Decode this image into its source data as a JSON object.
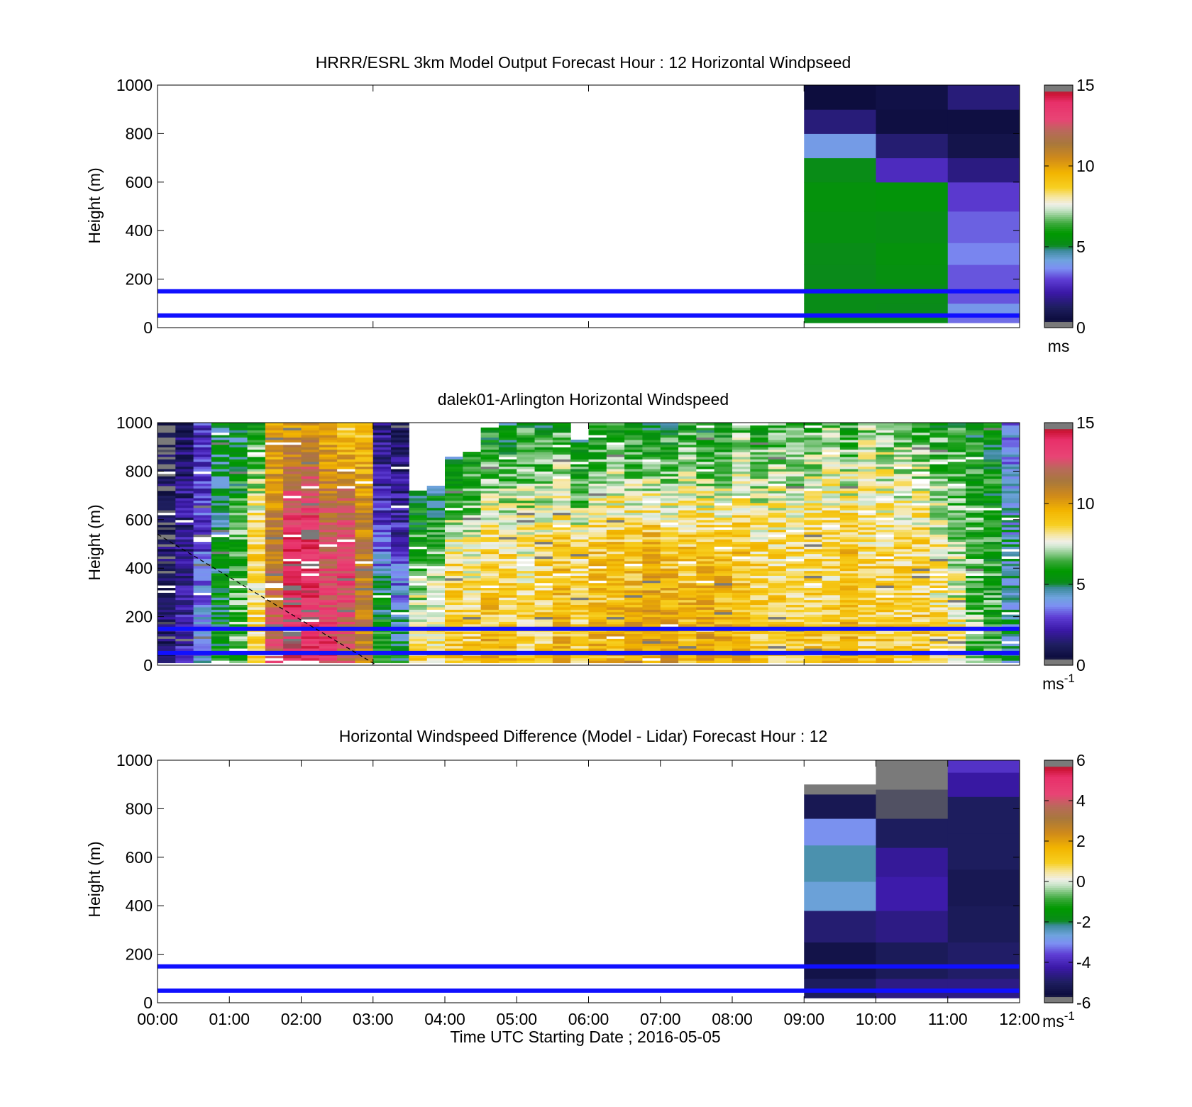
{
  "figure": {
    "xlabel": "Time UTC  Starting Date ; 2016-05-05",
    "x_tick_labels": [
      "00:00",
      "01:00",
      "02:00",
      "03:00",
      "04:00",
      "05:00",
      "06:00",
      "07:00",
      "08:00",
      "09:00",
      "10:00",
      "11:00",
      "12:00"
    ]
  },
  "chart_data": [
    {
      "type": "heatmap",
      "title": "HRRR/ESRL 3km Model Output   Forecast Hour : 12 Horizontal Windpseed",
      "ylabel": "Height (m)",
      "xlim": [
        0,
        12
      ],
      "ylim": [
        0,
        1000
      ],
      "y_ticks": [
        0,
        200,
        400,
        600,
        800,
        1000
      ],
      "colorbar": {
        "ticks": [
          0,
          5,
          10,
          15
        ],
        "range": [
          0,
          15
        ],
        "unit": "ms",
        "unit_exp": ""
      },
      "reference_lines_m": [
        50,
        150
      ],
      "columns": [
        {
          "t0": 9,
          "t1": 10,
          "levels": [
            {
              "z0": 20,
              "z1": 50,
              "v": 5.2
            },
            {
              "z0": 50,
              "z1": 100,
              "v": 5.2
            },
            {
              "z0": 100,
              "z1": 180,
              "v": 5.2
            },
            {
              "z0": 180,
              "z1": 260,
              "v": 5.1
            },
            {
              "z0": 260,
              "z1": 350,
              "v": 5.2
            },
            {
              "z0": 350,
              "z1": 480,
              "v": 5.4
            },
            {
              "z0": 480,
              "z1": 600,
              "v": 5.5
            },
            {
              "z0": 600,
              "z1": 700,
              "v": 5.2
            },
            {
              "z0": 700,
              "z1": 800,
              "v": 4.0
            },
            {
              "z0": 800,
              "z1": 900,
              "v": 1.6
            },
            {
              "z0": 900,
              "z1": 1000,
              "v": 0.5
            }
          ]
        },
        {
          "t0": 10,
          "t1": 11,
          "levels": [
            {
              "z0": 20,
              "z1": 50,
              "v": 5.2
            },
            {
              "z0": 50,
              "z1": 100,
              "v": 5.1
            },
            {
              "z0": 100,
              "z1": 180,
              "v": 5.2
            },
            {
              "z0": 180,
              "z1": 260,
              "v": 5.4
            },
            {
              "z0": 260,
              "z1": 350,
              "v": 5.5
            },
            {
              "z0": 350,
              "z1": 480,
              "v": 5.3
            },
            {
              "z0": 480,
              "z1": 600,
              "v": 5.6
            },
            {
              "z0": 600,
              "z1": 700,
              "v": 2.6
            },
            {
              "z0": 700,
              "z1": 800,
              "v": 1.5
            },
            {
              "z0": 800,
              "z1": 900,
              "v": 0.6
            },
            {
              "z0": 900,
              "z1": 1000,
              "v": 0.7
            }
          ]
        },
        {
          "t0": 11,
          "t1": 12,
          "levels": [
            {
              "z0": 20,
              "z1": 50,
              "v": 3.4
            },
            {
              "z0": 50,
              "z1": 100,
              "v": 3.9
            },
            {
              "z0": 100,
              "z1": 180,
              "v": 3.2
            },
            {
              "z0": 180,
              "z1": 260,
              "v": 3.2
            },
            {
              "z0": 260,
              "z1": 350,
              "v": 3.6
            },
            {
              "z0": 350,
              "z1": 480,
              "v": 3.3
            },
            {
              "z0": 480,
              "z1": 600,
              "v": 2.9
            },
            {
              "z0": 600,
              "z1": 700,
              "v": 1.7
            },
            {
              "z0": 700,
              "z1": 800,
              "v": 0.8
            },
            {
              "z0": 800,
              "z1": 900,
              "v": 0.6
            },
            {
              "z0": 900,
              "z1": 1000,
              "v": 1.6
            }
          ]
        }
      ]
    },
    {
      "type": "heatmap",
      "title": "dalek01-Arlington  Horizontal Windspeed",
      "ylabel": "Height (m)",
      "xlim": [
        0,
        12
      ],
      "ylim": [
        0,
        1000
      ],
      "y_ticks": [
        0,
        200,
        400,
        600,
        800,
        1000
      ],
      "colorbar": {
        "ticks": [
          0,
          5,
          10,
          15
        ],
        "range": [
          0,
          15
        ],
        "unit": "ms",
        "unit_exp": "-1"
      },
      "reference_lines_m": [
        50,
        150
      ],
      "dashed_line": {
        "from": [
          0,
          540
        ],
        "to": [
          3.05,
          0
        ]
      },
      "profiles": [
        {
          "t": 0.0,
          "top": 1000,
          "c": [
            1.2,
            1.0,
            0.6
          ]
        },
        {
          "t": 0.25,
          "top": 1000,
          "c": [
            2.5,
            1.8,
            1.5
          ]
        },
        {
          "t": 0.5,
          "top": 1000,
          "c": [
            4.0,
            3.0,
            2.5
          ]
        },
        {
          "t": 0.75,
          "top": 1000,
          "c": [
            5.5,
            5.0,
            5.2
          ]
        },
        {
          "t": 1.0,
          "top": 1000,
          "c": [
            6.5,
            6.5,
            5.0
          ]
        },
        {
          "t": 1.25,
          "top": 1000,
          "c": [
            8.5,
            8.5,
            6.0
          ]
        },
        {
          "t": 1.5,
          "top": 1000,
          "c": [
            12.5,
            11.0,
            9.5
          ]
        },
        {
          "t": 1.75,
          "top": 1000,
          "c": [
            14.0,
            14.0,
            10.0
          ]
        },
        {
          "t": 2.0,
          "top": 1000,
          "c": [
            13.5,
            14.0,
            10.5
          ]
        },
        {
          "t": 2.25,
          "top": 1000,
          "c": [
            13.5,
            12.5,
            9.5
          ]
        },
        {
          "t": 2.5,
          "top": 1000,
          "c": [
            12.0,
            13.5,
            8.5
          ]
        },
        {
          "t": 2.75,
          "top": 1000,
          "c": [
            11.0,
            11.0,
            9.0
          ]
        },
        {
          "t": 3.0,
          "top": 1000,
          "c": [
            7.0,
            3.0,
            1.5
          ]
        },
        {
          "t": 3.25,
          "top": 1000,
          "c": [
            5.5,
            2.5,
            1.0
          ]
        },
        {
          "t": 3.5,
          "top": 720,
          "c": [
            8.5,
            7.0,
            5.0
          ]
        },
        {
          "t": 3.75,
          "top": 740,
          "c": [
            8.5,
            7.0,
            5.0
          ]
        },
        {
          "t": 4.0,
          "top": 860,
          "c": [
            9.0,
            8.5,
            5.0
          ]
        },
        {
          "t": 4.25,
          "top": 880,
          "c": [
            9.0,
            8.0,
            5.5
          ]
        },
        {
          "t": 4.5,
          "top": 980,
          "c": [
            9.5,
            8.5,
            5.5
          ]
        },
        {
          "t": 4.75,
          "top": 1000,
          "c": [
            9.0,
            8.5,
            5.0
          ]
        },
        {
          "t": 5.0,
          "top": 1000,
          "c": [
            9.0,
            8.0,
            6.0
          ]
        },
        {
          "t": 5.25,
          "top": 1000,
          "c": [
            9.0,
            8.5,
            5.5
          ]
        },
        {
          "t": 5.5,
          "top": 1000,
          "c": [
            9.5,
            9.0,
            6.0
          ]
        },
        {
          "t": 5.75,
          "top": 930,
          "c": [
            9.0,
            8.5,
            5.0
          ]
        },
        {
          "t": 6.0,
          "top": 1000,
          "c": [
            9.5,
            9.0,
            5.5
          ]
        },
        {
          "t": 6.25,
          "top": 1000,
          "c": [
            9.5,
            9.0,
            6.0
          ]
        },
        {
          "t": 6.5,
          "top": 1000,
          "c": [
            10.0,
            9.0,
            5.5
          ]
        },
        {
          "t": 6.75,
          "top": 1000,
          "c": [
            10.0,
            9.5,
            5.0
          ]
        },
        {
          "t": 7.0,
          "top": 1000,
          "c": [
            10.0,
            9.0,
            5.5
          ]
        },
        {
          "t": 7.25,
          "top": 1000,
          "c": [
            9.5,
            9.0,
            6.0
          ]
        },
        {
          "t": 7.5,
          "top": 1000,
          "c": [
            10.0,
            9.0,
            5.5
          ]
        },
        {
          "t": 7.75,
          "top": 1000,
          "c": [
            10.0,
            9.0,
            5.5
          ]
        },
        {
          "t": 8.0,
          "top": 1000,
          "c": [
            9.5,
            9.0,
            6.5
          ]
        },
        {
          "t": 8.25,
          "top": 1000,
          "c": [
            9.0,
            8.5,
            6.0
          ]
        },
        {
          "t": 8.5,
          "top": 1000,
          "c": [
            9.0,
            8.5,
            6.5
          ]
        },
        {
          "t": 8.75,
          "top": 1000,
          "c": [
            9.0,
            8.5,
            6.0
          ]
        },
        {
          "t": 9.0,
          "top": 1000,
          "c": [
            9.0,
            8.5,
            6.5
          ]
        },
        {
          "t": 9.25,
          "top": 1000,
          "c": [
            9.0,
            8.5,
            7.0
          ]
        },
        {
          "t": 9.5,
          "top": 1000,
          "c": [
            9.5,
            9.0,
            6.0
          ]
        },
        {
          "t": 9.75,
          "top": 1000,
          "c": [
            9.0,
            8.5,
            7.0
          ]
        },
        {
          "t": 10.0,
          "top": 1000,
          "c": [
            9.0,
            8.5,
            7.0
          ]
        },
        {
          "t": 10.25,
          "top": 1000,
          "c": [
            9.0,
            8.5,
            6.5
          ]
        },
        {
          "t": 10.5,
          "top": 1000,
          "c": [
            9.0,
            8.5,
            6.5
          ]
        },
        {
          "t": 10.75,
          "top": 1000,
          "c": [
            8.5,
            8.0,
            6.0
          ]
        },
        {
          "t": 11.0,
          "top": 1000,
          "c": [
            8.5,
            7.0,
            6.0
          ]
        },
        {
          "t": 11.25,
          "top": 1000,
          "c": [
            7.0,
            6.5,
            5.5
          ]
        },
        {
          "t": 11.5,
          "top": 1000,
          "c": [
            6.5,
            6.0,
            5.5
          ]
        },
        {
          "t": 11.75,
          "top": 1000,
          "c": [
            5.0,
            4.5,
            3.5
          ]
        }
      ]
    },
    {
      "type": "heatmap",
      "title": "Horizontal Windspeed Difference (Model - Lidar) Forecast Hour : 12",
      "ylabel": "Height (m)",
      "xlim": [
        0,
        12
      ],
      "ylim": [
        0,
        1000
      ],
      "y_ticks": [
        0,
        200,
        400,
        600,
        800,
        1000
      ],
      "colorbar": {
        "ticks": [
          -6,
          -4,
          -2,
          0,
          2,
          4,
          6
        ],
        "range": [
          -6,
          6
        ],
        "unit": "ms",
        "unit_exp": "-1"
      },
      "reference_lines_m": [
        50,
        150
      ],
      "columns": [
        {
          "t0": 9,
          "t1": 10,
          "top": 900,
          "levels": [
            {
              "z0": 20,
              "z1": 100,
              "v": -5.0
            },
            {
              "z0": 100,
              "z1": 250,
              "v": -5.4
            },
            {
              "z0": 250,
              "z1": 380,
              "v": -4.8
            },
            {
              "z0": 380,
              "z1": 500,
              "v": -2.6
            },
            {
              "z0": 500,
              "z1": 650,
              "v": -2.3
            },
            {
              "z0": 650,
              "z1": 760,
              "v": -3.0
            },
            {
              "z0": 760,
              "z1": 860,
              "v": -5.2
            },
            {
              "z0": 860,
              "z1": 900,
              "v": -7.0
            }
          ]
        },
        {
          "t0": 10,
          "t1": 11,
          "top": 1000,
          "levels": [
            {
              "z0": 20,
              "z1": 100,
              "v": -4.6
            },
            {
              "z0": 100,
              "z1": 250,
              "v": -5.1
            },
            {
              "z0": 250,
              "z1": 380,
              "v": -4.6
            },
            {
              "z0": 380,
              "z1": 520,
              "v": -4.2
            },
            {
              "z0": 520,
              "z1": 640,
              "v": -4.4
            },
            {
              "z0": 640,
              "z1": 760,
              "v": -5.0
            },
            {
              "z0": 760,
              "z1": 880,
              "v": -5.7
            },
            {
              "z0": 880,
              "z1": 990,
              "v": -7.0
            },
            {
              "z0": 990,
              "z1": 1000,
              "v": -5.8
            }
          ]
        },
        {
          "t0": 11,
          "t1": 12,
          "top": 1000,
          "levels": [
            {
              "z0": 20,
              "z1": 100,
              "v": -4.6
            },
            {
              "z0": 100,
              "z1": 250,
              "v": -4.9
            },
            {
              "z0": 250,
              "z1": 400,
              "v": -5.1
            },
            {
              "z0": 400,
              "z1": 550,
              "v": -5.2
            },
            {
              "z0": 550,
              "z1": 700,
              "v": -5.0
            },
            {
              "z0": 700,
              "z1": 850,
              "v": -5.0
            },
            {
              "z0": 850,
              "z1": 950,
              "v": -4.3
            },
            {
              "z0": 950,
              "z1": 1000,
              "v": -3.8
            }
          ]
        }
      ]
    }
  ]
}
